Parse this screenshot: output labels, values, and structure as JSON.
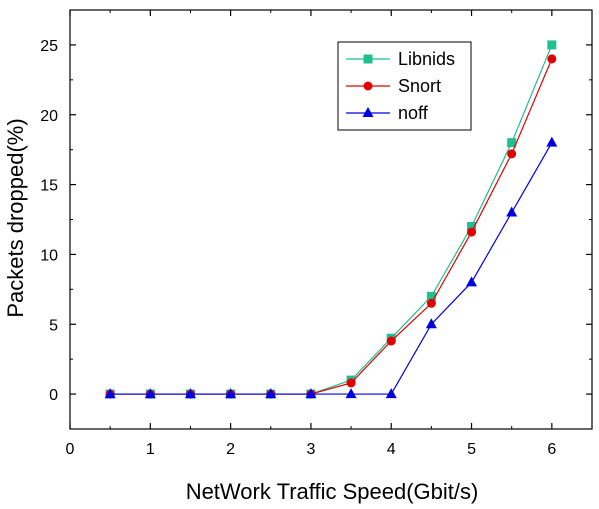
{
  "chart_data": {
    "type": "line",
    "title": "",
    "xlabel": "NetWork Traffic Speed(Gbit/s)",
    "ylabel": "Packets dropped(%)",
    "xlim": [
      0,
      6.5
    ],
    "ylim": [
      -2.5,
      27.5
    ],
    "xticks": [
      0,
      1,
      2,
      3,
      4,
      5,
      6
    ],
    "yticks": [
      0,
      5,
      10,
      15,
      20,
      25
    ],
    "grid": false,
    "legend_position": "top-right",
    "series": [
      {
        "name": "Libnids",
        "color": "#1fbf8f",
        "marker": "square",
        "x": [
          0.5,
          1,
          1.5,
          2,
          2.5,
          3,
          3.5,
          4,
          4.5,
          5,
          5.5,
          6
        ],
        "y": [
          0,
          0,
          0,
          0,
          0,
          0,
          1,
          4,
          7,
          12,
          18,
          25
        ]
      },
      {
        "name": "Snort",
        "color": "#e00000",
        "marker": "circle",
        "x": [
          0.5,
          1,
          1.5,
          2,
          2.5,
          3,
          3.5,
          4,
          4.5,
          5,
          5.5,
          6
        ],
        "y": [
          0,
          0,
          0,
          0,
          0,
          0,
          0.8,
          3.8,
          6.5,
          11.6,
          17.2,
          24
        ]
      },
      {
        "name": "noff",
        "color": "#0000e0",
        "marker": "triangle",
        "x": [
          0.5,
          1,
          1.5,
          2,
          2.5,
          3,
          3.5,
          4,
          4.5,
          5,
          5.5,
          6
        ],
        "y": [
          0,
          0,
          0,
          0,
          0,
          0,
          0,
          0,
          5,
          8,
          13,
          18
        ]
      }
    ]
  }
}
